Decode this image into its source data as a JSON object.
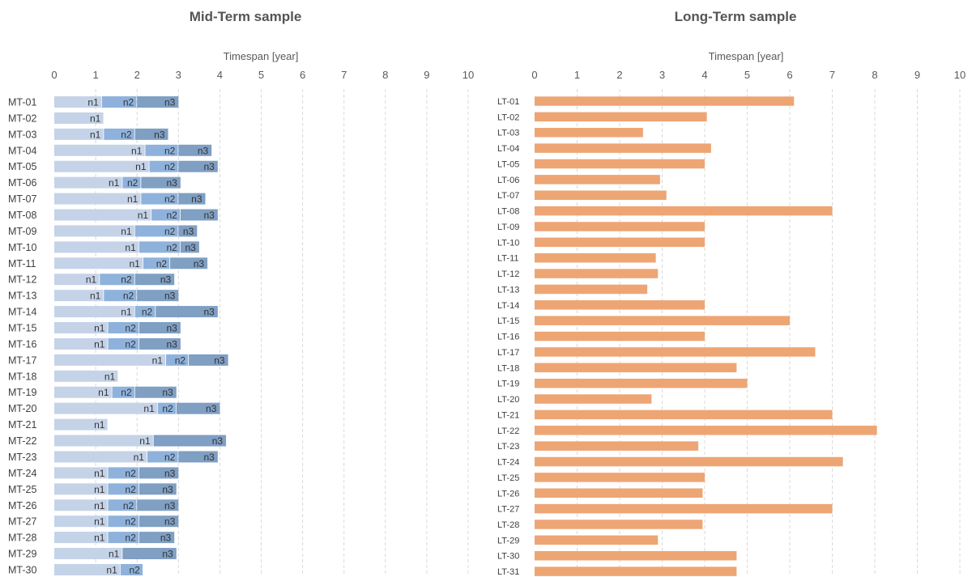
{
  "colors": {
    "n1": "#c5d3e8",
    "n2": "#8fb2dc",
    "n3": "#7f9fc3",
    "lt_bar": "#eea574",
    "grid": "#d9d9d9"
  },
  "chart_data": [
    {
      "type": "bar",
      "orientation": "horizontal",
      "stacked": true,
      "title": "Mid-Term sample",
      "xlabel": "Timespan [year]",
      "xlim": [
        0,
        10
      ],
      "xticks": [
        0,
        1,
        2,
        3,
        4,
        5,
        6,
        7,
        8,
        9,
        10
      ],
      "grid": "vertical dashed",
      "segment_labels": [
        "n1",
        "n2",
        "n3"
      ],
      "categories": [
        "MT-01",
        "MT-02",
        "MT-03",
        "MT-04",
        "MT-05",
        "MT-06",
        "MT-07",
        "MT-08",
        "MT-09",
        "MT-10",
        "MT-11",
        "MT-12",
        "MT-13",
        "MT-14",
        "MT-15",
        "MT-16",
        "MT-17",
        "MT-18",
        "MT-19",
        "MT-20",
        "MT-21",
        "MT-22",
        "MT-23",
        "MT-24",
        "MT-25",
        "MT-26",
        "MT-27",
        "MT-28",
        "MT-29",
        "MT-30"
      ],
      "series": [
        {
          "key": "n1",
          "values": [
            1.15,
            1.2,
            1.2,
            2.2,
            2.3,
            1.65,
            2.1,
            2.35,
            1.95,
            2.05,
            2.15,
            1.1,
            1.2,
            1.95,
            1.3,
            1.3,
            2.7,
            1.55,
            1.4,
            2.5,
            1.3,
            2.4,
            2.25,
            1.3,
            1.3,
            1.3,
            1.3,
            1.3,
            1.65,
            1.6
          ]
        },
        {
          "key": "n2",
          "values": [
            0.85,
            0,
            0.75,
            0.8,
            0.7,
            0.45,
            0.9,
            0.7,
            1.05,
            1.0,
            0.65,
            0.85,
            0.8,
            0.5,
            0.75,
            0.75,
            0.55,
            0,
            0.55,
            0.45,
            0,
            0,
            0.75,
            0.75,
            0.75,
            0.7,
            0.75,
            0.75,
            0,
            0.55
          ]
        },
        {
          "key": "n3",
          "values": [
            1.0,
            0,
            0.8,
            0.8,
            0.95,
            0.95,
            0.65,
            0.9,
            0.45,
            0.45,
            0.9,
            0.95,
            1.0,
            1.5,
            1.0,
            1.0,
            0.95,
            0,
            1.0,
            1.05,
            0,
            1.75,
            0.95,
            0.95,
            0.9,
            1.0,
            0.95,
            0.85,
            1.3,
            0
          ]
        }
      ]
    },
    {
      "type": "bar",
      "orientation": "horizontal",
      "title": "Long-Term sample",
      "xlabel": "Timespan [year]",
      "xlim": [
        0,
        10
      ],
      "xticks": [
        0,
        1,
        2,
        3,
        4,
        5,
        6,
        7,
        8,
        9,
        10
      ],
      "grid": "vertical dashed",
      "categories": [
        "LT-01",
        "LT-02",
        "LT-03",
        "LT-04",
        "LT-05",
        "LT-06",
        "LT-07",
        "LT-08",
        "LT-09",
        "LT-10",
        "LT-11",
        "LT-12",
        "LT-13",
        "LT-14",
        "LT-15",
        "LT-16",
        "LT-17",
        "LT-18",
        "LT-19",
        "LT-20",
        "LT-21",
        "LT-22",
        "LT-23",
        "LT-24",
        "LT-25",
        "LT-26",
        "LT-27",
        "LT-28",
        "LT-29",
        "LT-30",
        "LT-31"
      ],
      "values": [
        6.1,
        4.05,
        2.55,
        4.15,
        4.0,
        2.95,
        3.1,
        7.0,
        4.0,
        4.0,
        2.85,
        2.9,
        2.65,
        4.0,
        6.0,
        4.0,
        6.6,
        4.75,
        5.0,
        2.75,
        7.0,
        8.05,
        3.85,
        7.25,
        4.0,
        3.95,
        7.0,
        3.95,
        2.9,
        4.75,
        4.75
      ]
    }
  ]
}
